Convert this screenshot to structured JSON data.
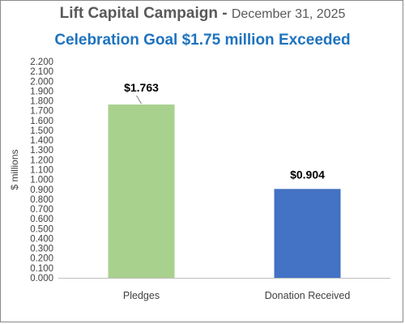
{
  "chart_data": {
    "type": "bar",
    "title": "Lift Capital Campaign - ",
    "title_date": "December 31, 2025",
    "subtitle": "Celebration Goal $1.75 million Exceeded",
    "ylabel": "$ millions",
    "xlabel": "",
    "ylim": [
      0,
      2.2
    ],
    "ytick_step": 0.1,
    "ytick_labels": [
      "0.000",
      "0.100",
      "0.200",
      "0.300",
      "0.400",
      "0.500",
      "0.600",
      "0.700",
      "0.800",
      "0.900",
      "1.000",
      "1.100",
      "1.200",
      "1.300",
      "1.400",
      "1.500",
      "1.600",
      "1.700",
      "1.800",
      "1.900",
      "2.000",
      "2.100",
      "2.200"
    ],
    "categories": [
      "Pledges",
      "Donation Received"
    ],
    "values": [
      1.763,
      0.904
    ],
    "data_labels": [
      "$1.763",
      "$0.904"
    ],
    "colors": [
      "#a9d18e",
      "#4472c4"
    ],
    "subtitle_color": "#1e73be",
    "grid": false,
    "legend": "none"
  }
}
